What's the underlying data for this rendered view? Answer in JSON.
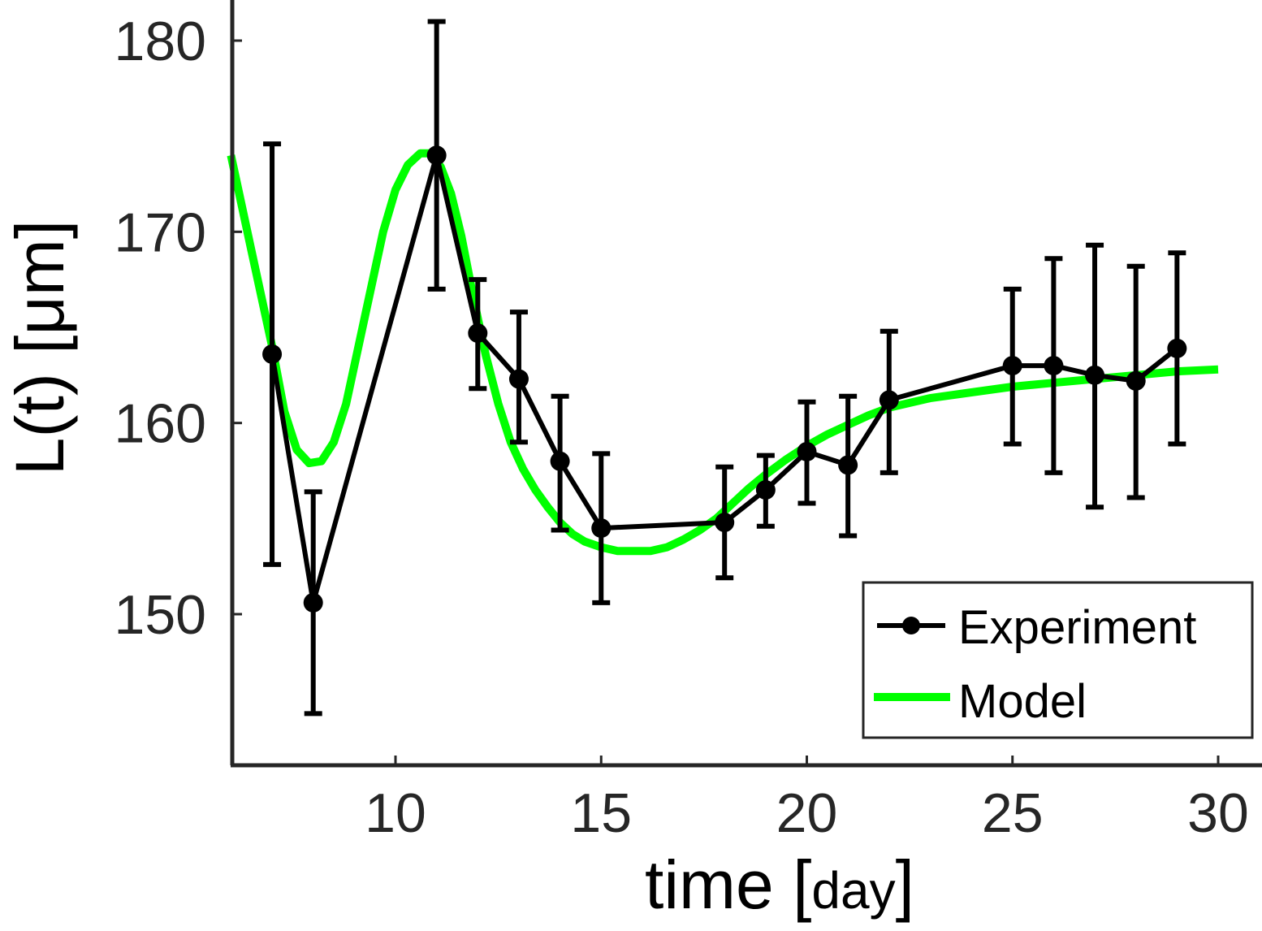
{
  "chart_data": {
    "type": "line",
    "xlabel": "time [day]",
    "ylabel": "L(t) [μm]",
    "xlim": [
      6,
      31
    ],
    "ylim": [
      142,
      182
    ],
    "x_ticks": [
      10,
      15,
      20,
      25,
      30
    ],
    "y_ticks": [
      150,
      160,
      170,
      180
    ],
    "grid": false,
    "legend_position": "bottom-right",
    "series": [
      {
        "name": "Experiment",
        "style": "line-markers-errorbars",
        "color": "#000000",
        "x": [
          7,
          8,
          11,
          12,
          13,
          14,
          15,
          18,
          19,
          20,
          21,
          22,
          25,
          26,
          27,
          28,
          29
        ],
        "y": [
          163.6,
          150.6,
          174.0,
          164.7,
          162.3,
          158.0,
          154.5,
          154.8,
          156.5,
          158.5,
          157.8,
          161.2,
          163.0,
          163.0,
          162.5,
          162.2,
          163.9
        ],
        "err_low": [
          152.6,
          144.8,
          167.0,
          161.8,
          159.0,
          154.4,
          150.6,
          151.9,
          154.6,
          155.8,
          154.1,
          157.4,
          158.9,
          157.4,
          155.6,
          156.1,
          158.9
        ],
        "err_high": [
          174.6,
          156.4,
          181.0,
          167.5,
          165.8,
          161.4,
          158.4,
          157.7,
          158.3,
          161.1,
          161.4,
          164.8,
          167.0,
          168.6,
          169.3,
          168.2,
          168.9
        ]
      },
      {
        "name": "Model",
        "style": "line",
        "color": "#00ff00",
        "x": [
          6.0,
          6.5,
          7.0,
          7.3,
          7.6,
          7.9,
          8.2,
          8.5,
          8.8,
          9.1,
          9.4,
          9.7,
          10.0,
          10.3,
          10.6,
          10.85,
          11.1,
          11.35,
          11.6,
          11.9,
          12.2,
          12.5,
          12.8,
          13.1,
          13.4,
          13.7,
          14.0,
          14.3,
          14.6,
          15.0,
          15.4,
          15.8,
          16.2,
          16.6,
          17.0,
          17.4,
          17.8,
          18.2,
          18.6,
          19.0,
          19.5,
          20.0,
          20.5,
          21.0,
          21.5,
          22.0,
          23.0,
          24.0,
          25.0,
          26.0,
          27.0,
          28.0,
          29.0,
          30.0
        ],
        "y": [
          174.0,
          169.0,
          164.0,
          160.6,
          158.6,
          157.9,
          158.0,
          159.0,
          161.0,
          164.0,
          167.0,
          170.0,
          172.2,
          173.5,
          174.1,
          174.1,
          173.4,
          172.0,
          169.8,
          166.5,
          163.5,
          161.0,
          159.0,
          157.6,
          156.5,
          155.6,
          154.8,
          154.2,
          153.8,
          153.5,
          153.3,
          153.3,
          153.3,
          153.5,
          153.9,
          154.4,
          155.0,
          155.8,
          156.6,
          157.3,
          158.1,
          158.8,
          159.4,
          159.9,
          160.4,
          160.8,
          161.3,
          161.6,
          161.9,
          162.1,
          162.3,
          162.5,
          162.7,
          162.8
        ]
      }
    ]
  }
}
